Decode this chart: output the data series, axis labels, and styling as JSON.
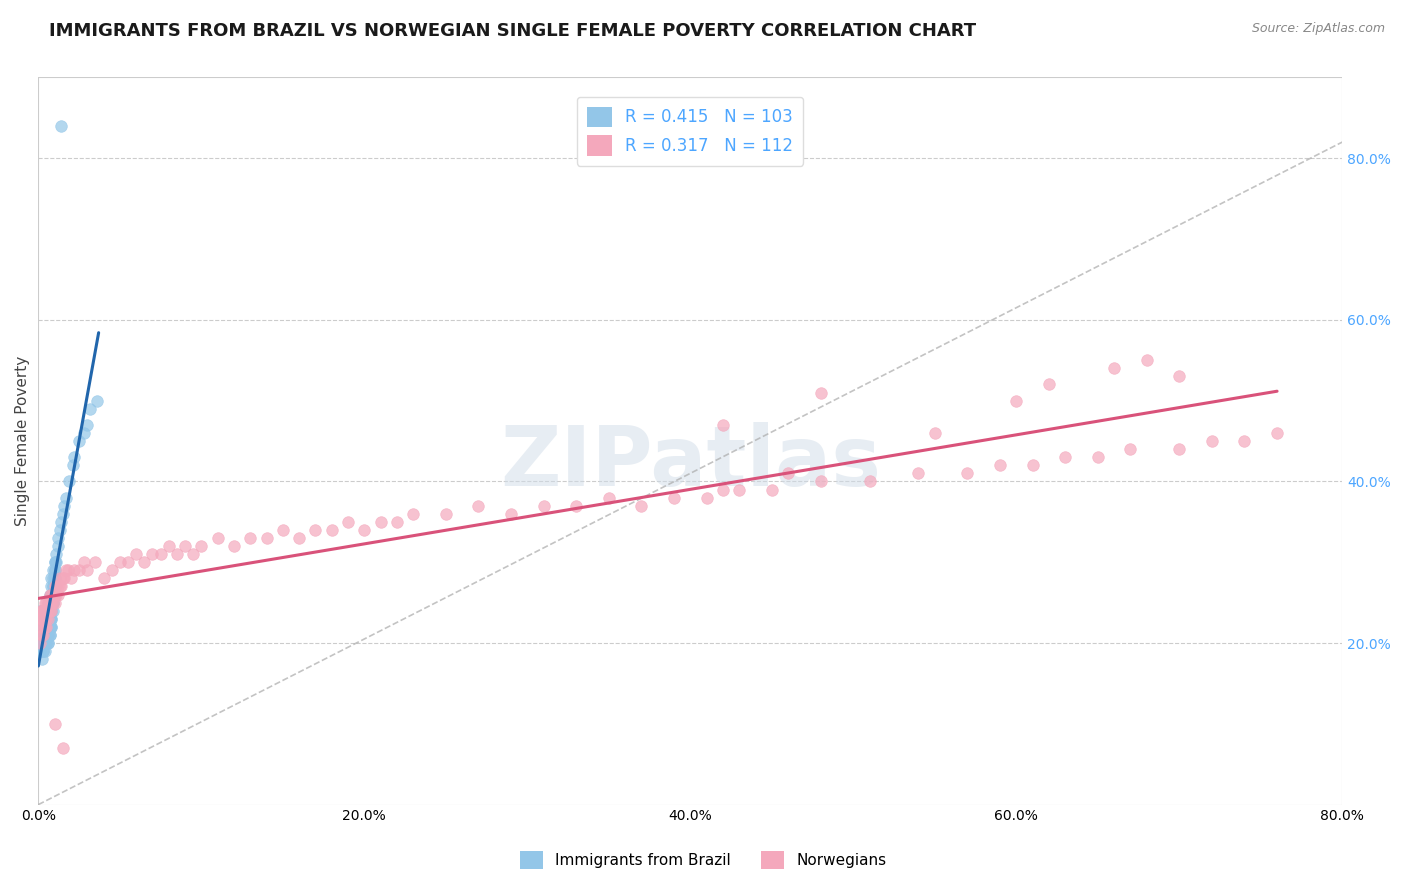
{
  "title": "IMMIGRANTS FROM BRAZIL VS NORWEGIAN SINGLE FEMALE POVERTY CORRELATION CHART",
  "source_text": "Source: ZipAtlas.com",
  "ylabel": "Single Female Poverty",
  "xlim": [
    0.0,
    0.8
  ],
  "ylim": [
    0.0,
    0.9
  ],
  "x_tick_labels": [
    "0.0%",
    "20.0%",
    "40.0%",
    "60.0%",
    "80.0%"
  ],
  "x_tick_vals": [
    0.0,
    0.2,
    0.4,
    0.6,
    0.8
  ],
  "y_tick_labels_right": [
    "20.0%",
    "40.0%",
    "60.0%",
    "80.0%"
  ],
  "y_tick_vals_right": [
    0.2,
    0.4,
    0.6,
    0.8
  ],
  "legend_label1": "Immigrants from Brazil",
  "legend_label2": "Norwegians",
  "R1": 0.415,
  "N1": 103,
  "R2": 0.317,
  "N2": 112,
  "color_brazil": "#93c6e8",
  "color_norway": "#f4a8bc",
  "color_brazil_line": "#2166ac",
  "color_norway_line": "#d9527a",
  "watermark_text": "ZIPatlas",
  "title_fontsize": 13,
  "label_fontsize": 11,
  "tick_fontsize": 10,
  "legend_fontsize": 12,
  "brazil_x": [
    0.001,
    0.001,
    0.001,
    0.001,
    0.001,
    0.002,
    0.002,
    0.002,
    0.002,
    0.003,
    0.003,
    0.003,
    0.003,
    0.003,
    0.003,
    0.003,
    0.004,
    0.004,
    0.004,
    0.004,
    0.004,
    0.004,
    0.004,
    0.004,
    0.004,
    0.005,
    0.005,
    0.005,
    0.005,
    0.005,
    0.005,
    0.005,
    0.005,
    0.005,
    0.006,
    0.006,
    0.006,
    0.006,
    0.006,
    0.006,
    0.006,
    0.006,
    0.006,
    0.006,
    0.006,
    0.007,
    0.007,
    0.007,
    0.007,
    0.007,
    0.007,
    0.007,
    0.007,
    0.007,
    0.007,
    0.007,
    0.008,
    0.008,
    0.008,
    0.008,
    0.008,
    0.008,
    0.008,
    0.008,
    0.008,
    0.008,
    0.008,
    0.008,
    0.009,
    0.009,
    0.009,
    0.009,
    0.009,
    0.009,
    0.009,
    0.009,
    0.009,
    0.01,
    0.01,
    0.01,
    0.01,
    0.01,
    0.01,
    0.01,
    0.01,
    0.011,
    0.011,
    0.012,
    0.012,
    0.013,
    0.014,
    0.015,
    0.016,
    0.017,
    0.019,
    0.021,
    0.022,
    0.025,
    0.028,
    0.03,
    0.032,
    0.036,
    0.014
  ],
  "brazil_y": [
    0.24,
    0.2,
    0.22,
    0.19,
    0.21,
    0.2,
    0.21,
    0.22,
    0.18,
    0.2,
    0.22,
    0.19,
    0.2,
    0.21,
    0.22,
    0.19,
    0.2,
    0.21,
    0.22,
    0.23,
    0.19,
    0.2,
    0.22,
    0.21,
    0.23,
    0.2,
    0.21,
    0.22,
    0.23,
    0.24,
    0.2,
    0.21,
    0.22,
    0.23,
    0.2,
    0.21,
    0.22,
    0.23,
    0.24,
    0.21,
    0.22,
    0.23,
    0.24,
    0.25,
    0.2,
    0.21,
    0.22,
    0.23,
    0.24,
    0.25,
    0.21,
    0.22,
    0.23,
    0.24,
    0.25,
    0.26,
    0.22,
    0.23,
    0.24,
    0.25,
    0.26,
    0.27,
    0.22,
    0.23,
    0.24,
    0.25,
    0.26,
    0.28,
    0.24,
    0.25,
    0.26,
    0.27,
    0.28,
    0.29,
    0.25,
    0.26,
    0.27,
    0.26,
    0.27,
    0.28,
    0.29,
    0.3,
    0.28,
    0.29,
    0.3,
    0.3,
    0.31,
    0.32,
    0.33,
    0.34,
    0.35,
    0.36,
    0.37,
    0.38,
    0.4,
    0.42,
    0.43,
    0.45,
    0.46,
    0.47,
    0.49,
    0.5,
    0.84
  ],
  "norway_x": [
    0.001,
    0.001,
    0.001,
    0.001,
    0.002,
    0.002,
    0.002,
    0.002,
    0.003,
    0.003,
    0.003,
    0.004,
    0.004,
    0.004,
    0.004,
    0.005,
    0.005,
    0.005,
    0.005,
    0.006,
    0.006,
    0.006,
    0.007,
    0.007,
    0.007,
    0.008,
    0.008,
    0.008,
    0.009,
    0.009,
    0.01,
    0.01,
    0.01,
    0.011,
    0.011,
    0.012,
    0.012,
    0.013,
    0.013,
    0.014,
    0.015,
    0.016,
    0.017,
    0.018,
    0.02,
    0.022,
    0.025,
    0.028,
    0.03,
    0.035,
    0.04,
    0.045,
    0.05,
    0.055,
    0.06,
    0.065,
    0.07,
    0.075,
    0.08,
    0.085,
    0.09,
    0.095,
    0.1,
    0.11,
    0.12,
    0.13,
    0.14,
    0.15,
    0.16,
    0.17,
    0.18,
    0.19,
    0.2,
    0.21,
    0.22,
    0.23,
    0.25,
    0.27,
    0.29,
    0.31,
    0.33,
    0.35,
    0.37,
    0.39,
    0.41,
    0.43,
    0.45,
    0.48,
    0.51,
    0.54,
    0.57,
    0.59,
    0.61,
    0.63,
    0.65,
    0.67,
    0.7,
    0.72,
    0.74,
    0.76,
    0.42,
    0.48,
    0.55,
    0.6,
    0.62,
    0.66,
    0.68,
    0.7,
    0.42,
    0.46,
    0.01,
    0.015
  ],
  "norway_y": [
    0.22,
    0.23,
    0.24,
    0.2,
    0.21,
    0.22,
    0.23,
    0.24,
    0.21,
    0.23,
    0.24,
    0.22,
    0.23,
    0.24,
    0.25,
    0.22,
    0.23,
    0.24,
    0.25,
    0.23,
    0.24,
    0.25,
    0.24,
    0.25,
    0.26,
    0.24,
    0.25,
    0.26,
    0.25,
    0.26,
    0.25,
    0.26,
    0.27,
    0.26,
    0.27,
    0.26,
    0.27,
    0.27,
    0.28,
    0.27,
    0.28,
    0.28,
    0.29,
    0.29,
    0.28,
    0.29,
    0.29,
    0.3,
    0.29,
    0.3,
    0.28,
    0.29,
    0.3,
    0.3,
    0.31,
    0.3,
    0.31,
    0.31,
    0.32,
    0.31,
    0.32,
    0.31,
    0.32,
    0.33,
    0.32,
    0.33,
    0.33,
    0.34,
    0.33,
    0.34,
    0.34,
    0.35,
    0.34,
    0.35,
    0.35,
    0.36,
    0.36,
    0.37,
    0.36,
    0.37,
    0.37,
    0.38,
    0.37,
    0.38,
    0.38,
    0.39,
    0.39,
    0.4,
    0.4,
    0.41,
    0.41,
    0.42,
    0.42,
    0.43,
    0.43,
    0.44,
    0.44,
    0.45,
    0.45,
    0.46,
    0.47,
    0.51,
    0.46,
    0.5,
    0.52,
    0.54,
    0.55,
    0.53,
    0.39,
    0.41,
    0.1,
    0.07
  ]
}
